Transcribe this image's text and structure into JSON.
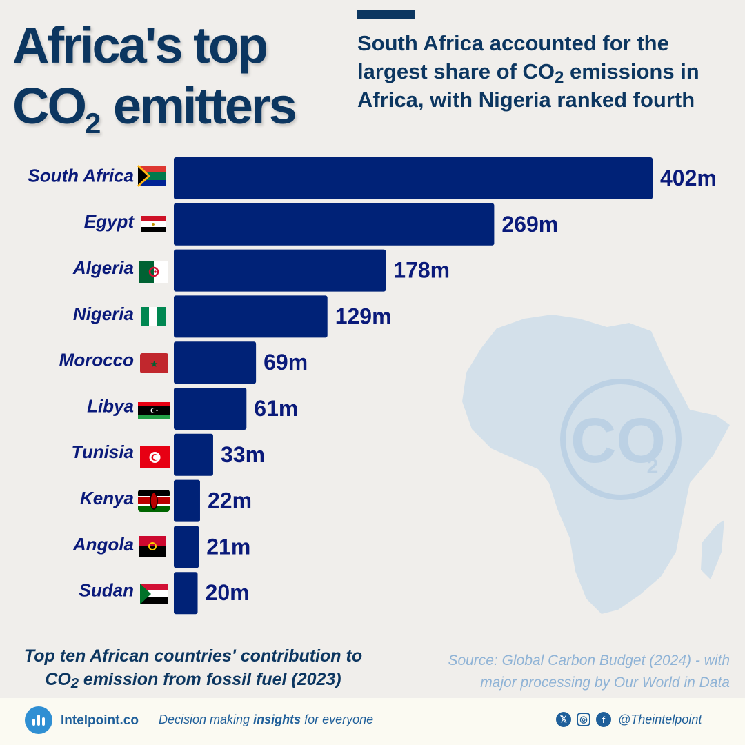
{
  "header": {
    "title_line1": "Africa's top",
    "title_line2": "CO",
    "title_sub": "2",
    "title_line2_rest": " emitters",
    "subtitle_a": "South Africa accounted for the largest share of CO",
    "subtitle_sub": "2",
    "subtitle_b": " emissions in Africa, with Nigeria ranked fourth",
    "accent_color": "#0c3660"
  },
  "chart_data": {
    "type": "bar",
    "orientation": "horizontal",
    "categories": [
      "South Africa",
      "Egypt",
      "Algeria",
      "Nigeria",
      "Morocco",
      "Libya",
      "Tunisia",
      "Kenya",
      "Angola",
      "Sudan"
    ],
    "values": [
      402,
      269,
      178,
      129,
      69,
      61,
      33,
      22,
      21,
      20
    ],
    "value_labels": [
      "402m",
      "269m",
      "178m",
      "129m",
      "69m",
      "61m",
      "33m",
      "22m",
      "21m",
      "20m"
    ],
    "unit": "m",
    "bar_color": "#002277",
    "grid": false,
    "legend": "none"
  },
  "caption": {
    "line1": "Top ten African countries' contribution to",
    "line2a": "CO",
    "line2_sub": "2",
    "line2b": " emission from fossil fuel (2023)"
  },
  "source": {
    "line1": "Source: Global Carbon Budget (2024) - with",
    "line2": "major processing by  Our World in Data"
  },
  "footer": {
    "brand": "Intelpoint.co",
    "tagline_a": "Decision making ",
    "tagline_b": "insights",
    "tagline_c": " for everyone",
    "handle": "@Theintelpoint",
    "icons": [
      "x-icon",
      "instagram-icon",
      "facebook-icon"
    ]
  },
  "decor": {
    "map_watermark": "CO",
    "map_watermark_sub": "2"
  }
}
